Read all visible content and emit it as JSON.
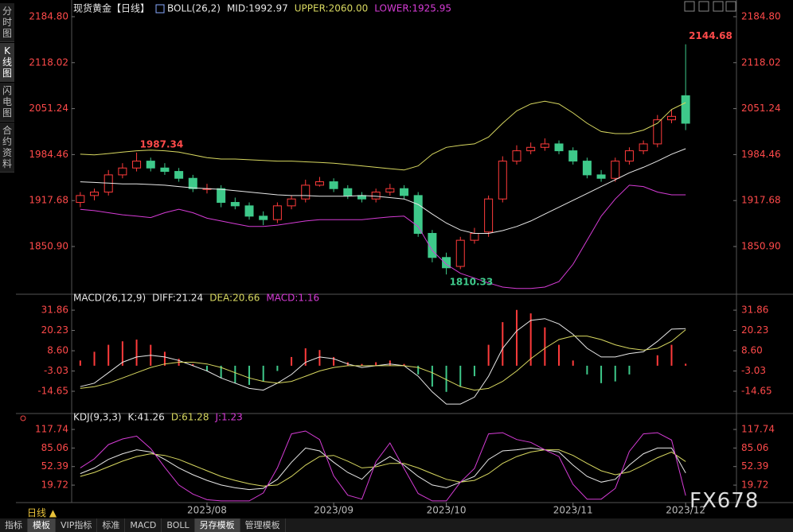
{
  "sidebar": [
    "分时图",
    "K线图",
    "闪电图",
    "合约资料"
  ],
  "period": "日线 ▲",
  "toolbar": [
    "指标",
    "模板",
    "VIP指标",
    "标准",
    "MACD",
    "BOLL",
    "另存模板",
    "管理模板"
  ],
  "watermark": "FX678",
  "chart_data": [
    {
      "type": "candlestick",
      "title": "现货黄金【日线】",
      "indicator": "BOLL(26,2)",
      "categories": [
        null,
        null,
        null,
        null,
        null,
        null,
        null,
        null,
        null,
        "2023/08",
        null,
        null,
        null,
        null,
        null,
        null,
        null,
        null,
        "2023/09",
        null,
        null,
        null,
        null,
        null,
        null,
        null,
        "2023/10",
        null,
        null,
        null,
        null,
        null,
        null,
        null,
        null,
        "2023/11",
        null,
        null,
        null,
        null,
        null,
        null,
        null,
        "2023/12"
      ],
      "open": [
        1915,
        1925,
        1930,
        1955,
        1965,
        1975,
        1965,
        1960,
        1950,
        1935,
        1935,
        1915,
        1910,
        1895,
        1890,
        1910,
        1920,
        1940,
        1945,
        1935,
        1925,
        1920,
        1930,
        1935,
        1925,
        1870,
        1835,
        1822,
        1860,
        1872,
        1920,
        1975,
        1990,
        1995,
        2000,
        1990,
        1975,
        1955,
        1950,
        1975,
        1990,
        2000,
        2035,
        2070
      ],
      "high": [
        1930,
        1935,
        1962,
        1972,
        1987.34,
        1980,
        1972,
        1965,
        1955,
        1942,
        1940,
        1922,
        1915,
        1902,
        1915,
        1925,
        1948,
        1952,
        1950,
        1940,
        1930,
        1935,
        1942,
        1940,
        1930,
        1875,
        1842,
        1865,
        1878,
        1925,
        1982,
        1998,
        2002,
        2008,
        2005,
        1995,
        1980,
        1962,
        1980,
        1995,
        2005,
        2042,
        2050,
        2144.68
      ],
      "low": [
        1908,
        1918,
        1925,
        1950,
        1960,
        1960,
        1955,
        1945,
        1930,
        1928,
        1908,
        1905,
        1890,
        1882,
        1885,
        1905,
        1915,
        1938,
        1930,
        1920,
        1915,
        1915,
        1925,
        1920,
        1865,
        1828,
        1810.33,
        1818,
        1855,
        1865,
        1915,
        1970,
        1985,
        1990,
        1985,
        1970,
        1950,
        1945,
        1945,
        1970,
        1985,
        1995,
        2030,
        2020
      ],
      "close": [
        1925,
        1930,
        1955,
        1965,
        1975,
        1965,
        1960,
        1950,
        1935,
        1935,
        1915,
        1910,
        1895,
        1890,
        1910,
        1920,
        1940,
        1945,
        1935,
        1925,
        1920,
        1930,
        1935,
        1925,
        1870,
        1835,
        1820,
        1860,
        1870,
        1920,
        1975,
        1990,
        1995,
        2000,
        1990,
        1975,
        1955,
        1950,
        1975,
        1990,
        2000,
        2035,
        2040,
        2030
      ],
      "up_color": "#ff3b3b",
      "down_color": "#3ec98a",
      "series": [
        {
          "name": "MID:1992.97",
          "color": "#e8e8e8",
          "values": [
            1945,
            1944,
            1943,
            1942,
            1942,
            1941,
            1940,
            1938,
            1936,
            1935,
            1934,
            1932,
            1930,
            1928,
            1926,
            1925,
            1925,
            1924,
            1924,
            1924,
            1925,
            1924,
            1922,
            1920,
            1912,
            1898,
            1885,
            1875,
            1870,
            1870,
            1874,
            1880,
            1888,
            1898,
            1908,
            1918,
            1928,
            1938,
            1948,
            1958,
            1966,
            1975,
            1985,
            1992.97
          ]
        },
        {
          "name": "UPPER:2060.00",
          "color": "#d8d860",
          "values": [
            1985,
            1984,
            1986,
            1988,
            1990,
            1991,
            1990,
            1988,
            1984,
            1980,
            1978,
            1978,
            1977,
            1976,
            1975,
            1975,
            1974,
            1973,
            1972,
            1970,
            1968,
            1966,
            1964,
            1962,
            1968,
            1985,
            1995,
            1998,
            2000,
            2010,
            2030,
            2048,
            2058,
            2062,
            2058,
            2045,
            2030,
            2018,
            2015,
            2015,
            2020,
            2030,
            2050,
            2060
          ]
        },
        {
          "name": "LOWER:1925.95",
          "color": "#d63cd6",
          "values": [
            1905,
            1903,
            1900,
            1897,
            1895,
            1893,
            1900,
            1905,
            1900,
            1892,
            1888,
            1884,
            1880,
            1880,
            1882,
            1885,
            1888,
            1890,
            1890,
            1890,
            1890,
            1892,
            1894,
            1895,
            1880,
            1845,
            1825,
            1812,
            1805,
            1798,
            1792,
            1790,
            1790,
            1792,
            1800,
            1825,
            1860,
            1895,
            1920,
            1940,
            1938,
            1930,
            1926,
            1925.95
          ]
        }
      ],
      "ylim": [
        1781.6,
        2199.8
      ],
      "yticks": [
        {
          "value": 1850.9,
          "label": "1850.90"
        },
        1917.68,
        1984.46,
        2051.24,
        2118.02,
        {
          "value": 2184.8,
          "label": "2184.80"
        }
      ]
    },
    {
      "type": "macd",
      "title": "MACD(26,12,9)",
      "series": [
        {
          "name": "DIFF:21.24",
          "color": "#e8e8e8",
          "values": [
            -12,
            -10,
            -4,
            2,
            5,
            6,
            5,
            3,
            0,
            -3,
            -7,
            -10,
            -13,
            -14,
            -10,
            -5,
            2,
            5,
            4,
            1,
            -1,
            0,
            1,
            0,
            -6,
            -15,
            -22,
            -22,
            -18,
            -6,
            10,
            20,
            26,
            27,
            24,
            18,
            10,
            5,
            5,
            7,
            8,
            14,
            21,
            21.24
          ]
        },
        {
          "name": "DEA:20.66",
          "color": "#d8d860",
          "values": [
            -13,
            -12,
            -10,
            -7,
            -4,
            -1,
            1,
            2,
            2,
            1,
            -1,
            -4,
            -7,
            -9,
            -10,
            -9,
            -6,
            -3,
            -1,
            0,
            0,
            0,
            0,
            0,
            -1,
            -4,
            -8,
            -12,
            -14,
            -13,
            -9,
            -3,
            4,
            10,
            15,
            17,
            17,
            15,
            12,
            10,
            9,
            10,
            14,
            20.66
          ]
        },
        {
          "name": "MACD:1.16",
          "color": "#d63cd6",
          "bars": true,
          "values": [
            3,
            8,
            12,
            14,
            15,
            12,
            8,
            4,
            1,
            -3,
            -7,
            -10,
            -11,
            -9,
            -3,
            5,
            10,
            9,
            5,
            2,
            1,
            2,
            3,
            1,
            -5,
            -12,
            -15,
            -12,
            -6,
            12,
            25,
            32,
            30,
            22,
            12,
            3,
            -5,
            -10,
            -9,
            -5,
            0,
            6,
            12,
            1.16
          ]
        }
      ],
      "up_color": "#ff3b3b",
      "down_color": "#3ec98a",
      "ylim": [
        -26.5,
        40.1
      ],
      "yticks": [
        -14.65,
        -3.03,
        {
          "value": 8.6,
          "label": "8.60"
        },
        20.23,
        31.86
      ]
    },
    {
      "type": "line",
      "title": "KDJ(9,3,3)",
      "series": [
        {
          "name": "K:41.26",
          "color": "#e8e8e8",
          "values": [
            40,
            50,
            65,
            75,
            82,
            78,
            65,
            50,
            38,
            28,
            20,
            15,
            12,
            14,
            30,
            60,
            85,
            80,
            60,
            42,
            30,
            55,
            70,
            55,
            35,
            20,
            15,
            25,
            35,
            65,
            80,
            82,
            85,
            82,
            78,
            55,
            35,
            25,
            30,
            55,
            75,
            85,
            85,
            41.26
          ]
        },
        {
          "name": "D:61.28",
          "color": "#d8d860",
          "values": [
            35,
            42,
            52,
            62,
            70,
            75,
            72,
            65,
            55,
            45,
            35,
            28,
            22,
            18,
            20,
            35,
            55,
            70,
            72,
            62,
            50,
            52,
            58,
            58,
            50,
            40,
            30,
            25,
            28,
            40,
            58,
            70,
            78,
            82,
            82,
            72,
            58,
            45,
            38,
            43,
            55,
            68,
            78,
            61.28
          ]
        },
        {
          "name": "J:1.23",
          "color": "#d63cd6",
          "values": [
            50,
            66,
            91,
            101,
            106,
            84,
            51,
            20,
            4,
            -6,
            -8,
            -8,
            -8,
            6,
            50,
            110,
            115,
            100,
            36,
            2,
            -5,
            61,
            94,
            49,
            5,
            -8,
            -8,
            25,
            49,
            110,
            112,
            100,
            95,
            82,
            70,
            21,
            -5,
            -5,
            14,
            79,
            110,
            112,
            99,
            1.23
          ]
        }
      ],
      "ylim": [
        -11,
        143
      ],
      "yticks": [
        19.72,
        52.39,
        85.06,
        117.74
      ]
    }
  ]
}
